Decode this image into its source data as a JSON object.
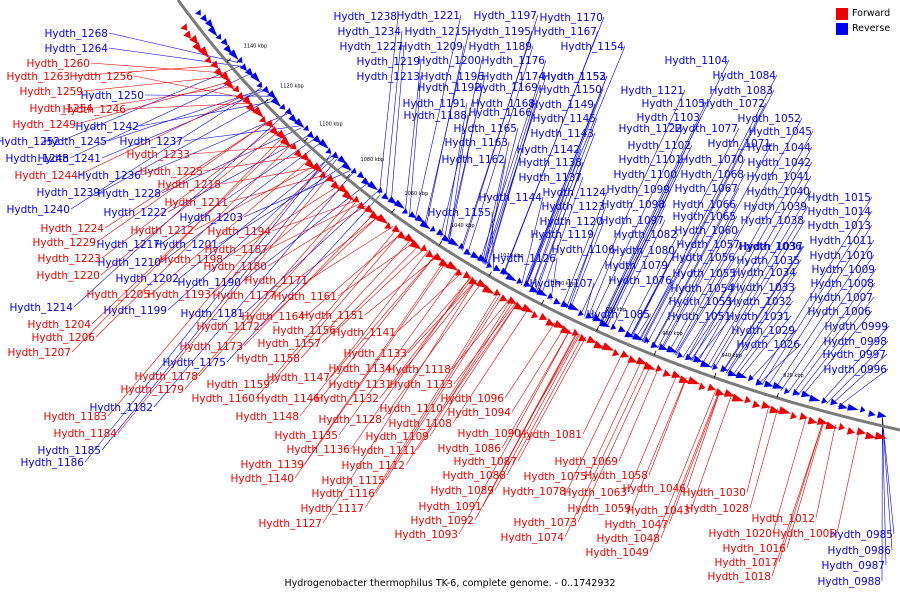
{
  "title": "Hydrogenobacter thermophilus TK-6, complete genome. - 0..1742932",
  "legend": [
    {
      "label": "Forward",
      "color": "#ee0000"
    },
    {
      "label": "Reverse",
      "color": "#0000ee"
    }
  ],
  "colors": {
    "forward": "#ee0000",
    "reverse": "#0000ee",
    "backbone": "#7a7a7a"
  },
  "scale_labels": [
    "1140 kbp",
    "1120 kbp",
    "1100 kbp",
    "1080 kbp",
    "1060 kbp",
    "1040 kbp",
    "1020 kbp",
    "1000 kbp",
    "980 kbp",
    "960 kbp",
    "940 kbp",
    "920 kbp"
  ],
  "reverse_labels": [
    "Hydth_1268",
    "Hydth_1264",
    "Hydth_1250",
    "Hydth_1242",
    "Hydth_1237",
    "Hydth_1241",
    "Hydth_1236",
    "Hydth_1252",
    "Hydth_1245",
    "Hydth_1248",
    "Hydth_1239",
    "Hydth_1240",
    "Hydth_1228",
    "Hydth_1222",
    "Hydth_1203",
    "Hydth_1217",
    "Hydth_1201",
    "Hydth_1210",
    "Hydth_1202",
    "Hydth_1214",
    "Hydth_1190",
    "Hydth_1199",
    "Hydth_1181",
    "Hydth_1175",
    "Hydth_1182",
    "Hydth_1185",
    "Hydth_1186",
    "Hydth_1238",
    "Hydth_1221",
    "Hydth_1197",
    "Hydth_1170",
    "Hydth_1234",
    "Hydth_1215",
    "Hydth_1195",
    "Hydth_1167",
    "Hydth_1227",
    "Hydth_1209",
    "Hydth_1189",
    "Hydth_1154",
    "Hydth_1219",
    "Hydth_1200",
    "Hydth_1176",
    "Hydth_1153",
    "Hydth_1213",
    "Hydth_1196",
    "Hydth_1174",
    "Hydth_1152",
    "Hydth_1192",
    "Hydth_1169",
    "Hydth_1150",
    "Hydth_1191",
    "Hydth_1168",
    "Hydth_1149",
    "Hydth_1188",
    "Hydth_1166",
    "Hydth_1145",
    "Hydth_1165",
    "Hydth_1143",
    "Hydth_1163",
    "Hydth_1142",
    "Hydth_1162",
    "Hydth_1138",
    "Hydth_1137",
    "Hydth_1144",
    "Hydth_1124",
    "Hydth_1155",
    "Hydth_1123",
    "Hydth_1120",
    "Hydth_1119",
    "Hydth_1106",
    "Hydth_1126",
    "Hydth_1107",
    "Hydth_1104",
    "Hydth_1084",
    "Hydth_1121",
    "Hydth_1083",
    "Hydth_1105",
    "Hydth_1072",
    "Hydth_1103",
    "Hydth_1122",
    "Hydth_1077",
    "Hydth_1052",
    "Hydth_1071",
    "Hydth_1045",
    "Hydth_1102",
    "Hydth_1044",
    "Hydth_1101",
    "Hydth_1070",
    "Hydth_1042",
    "Hydth_1100",
    "Hydth_1068",
    "Hydth_1041",
    "Hydth_1099",
    "Hydth_1067",
    "Hydth_1040",
    "Hydth_1098",
    "Hydth_1066",
    "Hydth_1039",
    "Hydth_1097",
    "Hydth_1065",
    "Hydth_1038",
    "Hydth_1082",
    "Hydth_1060",
    "Hydth_1037",
    "Hydth_1080",
    "Hydth_1057",
    "Hydth_1036",
    "Hydth_1079",
    "Hydth_1056",
    "Hydth_1035",
    "Hydth_1076",
    "Hydth_1055",
    "Hydth_1034",
    "Hydth_1054",
    "Hydth_1033",
    "Hydth_1053",
    "Hydth_1032",
    "Hydth_1085",
    "Hydth_1051",
    "Hydth_1031",
    "Hydth_1029",
    "Hydth_1026",
    "Hydth_1015",
    "Hydth_1014",
    "Hydth_1013",
    "Hydth_1011",
    "Hydth_1010",
    "Hydth_1009",
    "Hydth_1008",
    "Hydth_1007",
    "Hydth_1006",
    "Hydth_0999",
    "Hydth_0998",
    "Hydth_0997",
    "Hydth_0996",
    "Hydth_0985",
    "Hydth_0986",
    "Hydth_0987",
    "Hydth_0988"
  ],
  "forward_labels": [
    "Hydth_1260",
    "Hydth_1256",
    "Hydth_1263",
    "Hydth_1259",
    "Hydth_1254",
    "Hydth_1246",
    "Hydth_1249",
    "Hydth_1233",
    "Hydth_1225",
    "Hydth_1244",
    "Hydth_1218",
    "Hydth_1211",
    "Hydth_1224",
    "Hydth_1212",
    "Hydth_1229",
    "Hydth_1194",
    "Hydth_1223",
    "Hydth_1187",
    "Hydth_1198",
    "Hydth_1180",
    "Hydth_1220",
    "Hydth_1171",
    "Hydth_1177",
    "Hydth_1161",
    "Hydth_1205",
    "Hydth_1193",
    "Hydth_1164",
    "Hydth_1151",
    "Hydth_1204",
    "Hydth_1172",
    "Hydth_1156",
    "Hydth_1206",
    "Hydth_1173",
    "Hydth_1157",
    "Hydth_1141",
    "Hydth_1207",
    "Hydth_1158",
    "Hydth_1133",
    "Hydth_1178",
    "Hydth_1134",
    "Hydth_1118",
    "Hydth_1159",
    "Hydth_1147",
    "Hydth_1131",
    "Hydth_1113",
    "Hydth_1179",
    "Hydth_1160",
    "Hydth_1146",
    "Hydth_1132",
    "Hydth_1148",
    "Hydth_1183",
    "Hydth_1128",
    "Hydth_1110",
    "Hydth_1184",
    "Hydth_1135",
    "Hydth_1108",
    "Hydth_1109",
    "Hydth_1136",
    "Hydth_1111",
    "Hydth_1139",
    "Hydth_1112",
    "Hydth_1140",
    "Hydth_1115",
    "Hydth_1116",
    "Hydth_1117",
    "Hydth_1127",
    "Hydth_1096",
    "Hydth_1094",
    "Hydth_1090",
    "Hydth_1081",
    "Hydth_1086",
    "Hydth_1087",
    "Hydth_1088",
    "Hydth_1089",
    "Hydth_1091",
    "Hydth_1092",
    "Hydth_1093",
    "Hydth_1069",
    "Hydth_1075",
    "Hydth_1058",
    "Hydth_1078",
    "Hydth_1063",
    "Hydth_1046",
    "Hydth_1059",
    "Hydth_1043",
    "Hydth_1073",
    "Hydth_1047",
    "Hydth_1074",
    "Hydth_1048",
    "Hydth_1049",
    "Hydth_1030",
    "Hydth_1028",
    "Hydth_1012",
    "Hydth_1005",
    "Hydth_1020",
    "Hydth_1016",
    "Hydth_1017",
    "Hydth_1018"
  ]
}
